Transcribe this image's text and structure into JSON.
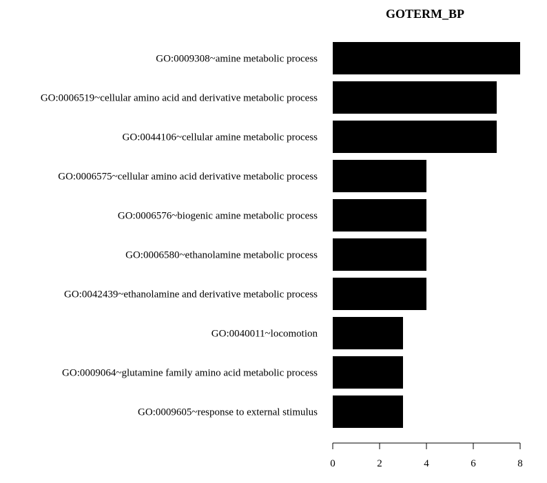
{
  "chart_data": {
    "type": "bar",
    "orientation": "horizontal",
    "title": "GOTERM_BP",
    "categories": [
      "GO:0009308~amine metabolic process",
      "GO:0006519~cellular amino acid and derivative metabolic process",
      "GO:0044106~cellular amine metabolic process",
      "GO:0006575~cellular amino acid derivative metabolic process",
      "GO:0006576~biogenic amine metabolic process",
      "GO:0006580~ethanolamine metabolic process",
      "GO:0042439~ethanolamine and derivative metabolic process",
      "GO:0040011~locomotion",
      "GO:0009064~glutamine family amino acid metabolic process",
      "GO:0009605~response to external stimulus"
    ],
    "values": [
      8,
      7,
      7,
      4,
      4,
      4,
      4,
      3,
      3,
      3
    ],
    "xlim": [
      0,
      8
    ],
    "xticks": [
      "0",
      "2",
      "4",
      "6",
      "8"
    ],
    "bar_color": "#000000",
    "grid": false,
    "legend": "none"
  }
}
